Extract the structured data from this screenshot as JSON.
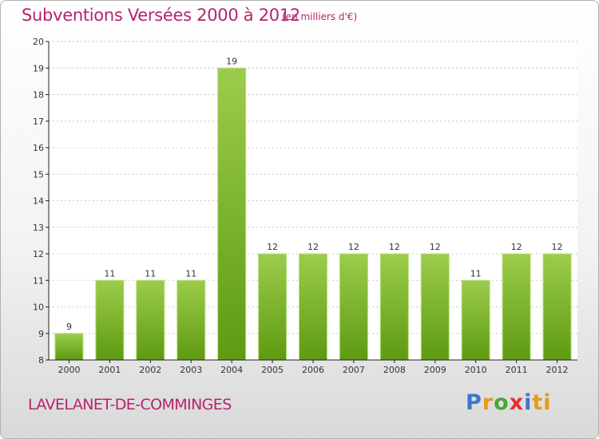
{
  "header": {
    "title": "Subventions Versées 2000 à 2012",
    "subtitle": "(en milliers d'€)"
  },
  "footer": {
    "location": "LAVELANET-DE-COMMINGES",
    "logo_text": "Proxiti"
  },
  "colors": {
    "title": "#b5246e",
    "bar_light": "#9ccc4c",
    "bar_dark": "#5e9a12",
    "axis": "#222222",
    "grid": "#c8c8c8"
  },
  "chart_data": {
    "type": "bar",
    "title": "Subventions Versées 2000 à 2012",
    "subtitle": "(en milliers d'€)",
    "categories": [
      "2000",
      "2001",
      "2002",
      "2003",
      "2004",
      "2005",
      "2006",
      "2007",
      "2008",
      "2009",
      "2010",
      "2011",
      "2012"
    ],
    "values": [
      9,
      11,
      11,
      11,
      19,
      12,
      12,
      12,
      12,
      12,
      11,
      12,
      12
    ],
    "data_labels": [
      "9",
      "11",
      "11",
      "11",
      "19",
      "12",
      "12",
      "12",
      "12",
      "12",
      "11",
      "12",
      "12"
    ],
    "ylim": [
      8,
      20
    ],
    "yticks": [
      8,
      9,
      10,
      11,
      12,
      13,
      14,
      15,
      16,
      17,
      18,
      19,
      20
    ],
    "xlabel": "",
    "ylabel": "",
    "grid": true,
    "legend": "none"
  }
}
